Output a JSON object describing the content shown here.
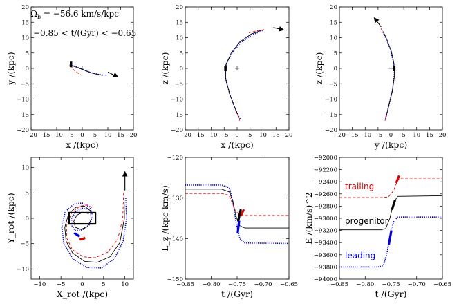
{
  "figure": {
    "annotations": {
      "omega": "Ω",
      "omega_sub": "b",
      "omega_value": " = −56.6 km/s/kpc",
      "time_range": "−0.85 < t/(Gyr) < −0.65"
    }
  },
  "colors": {
    "trailing": "#dd0000",
    "progenitor": "#000000",
    "leading": "#0000dd"
  },
  "chart_data": [
    {
      "type": "line",
      "panel": "xy",
      "xlabel": "x /(kpc)",
      "ylabel": "y /(kpc)",
      "xlim": [
        -20,
        20
      ],
      "ylim": [
        -20,
        20
      ],
      "xticks": [
        -20,
        -15,
        -10,
        -5,
        0,
        5,
        10,
        15,
        20
      ],
      "yticks": [
        -20,
        -15,
        -10,
        -5,
        0,
        5,
        10,
        15,
        20
      ],
      "series": [
        {
          "role": "leading",
          "points": [
            [
              -4.5,
              1.3
            ],
            [
              -2,
              0.4
            ],
            [
              2,
              -1
            ],
            [
              6,
              -1.9
            ],
            [
              9.5,
              -2.3
            ]
          ]
        },
        {
          "role": "progenitor",
          "points": [
            [
              -5,
              1.1
            ],
            [
              -3,
              0.6
            ],
            [
              0,
              -0.3
            ],
            [
              4,
              -1.6
            ],
            [
              8,
              -2.3
            ]
          ]
        },
        {
          "role": "trailing",
          "points": [
            [
              -4.5,
              1.0
            ],
            [
              -3.5,
              -0.4
            ],
            [
              -2,
              -1.3
            ],
            [
              -0.5,
              -2.2
            ]
          ]
        }
      ],
      "progenitor_mark": [
        -4.4,
        1.3
      ],
      "arrow": {
        "from": [
          10,
          -1.2
        ],
        "to": [
          14,
          -2.8
        ]
      },
      "center": [
        0,
        0
      ]
    },
    {
      "type": "line",
      "panel": "xz",
      "xlabel": "x /(kpc)",
      "ylabel": "z /(kpc)",
      "xlim": [
        -20,
        20
      ],
      "ylim": [
        -20,
        20
      ],
      "xticks": [
        -20,
        -15,
        -10,
        -5,
        0,
        5,
        10,
        15,
        20
      ],
      "yticks": [
        -20,
        -15,
        -10,
        -5,
        0,
        5,
        10,
        15,
        20
      ],
      "series": [
        {
          "role": "leading",
          "points": [
            [
              10,
              12.3
            ],
            [
              6,
              11
            ],
            [
              1.5,
              8.5
            ],
            [
              -2,
              5
            ],
            [
              -4.2,
              1.5
            ],
            [
              -4.5,
              -3
            ],
            [
              -3,
              -8
            ],
            [
              -1,
              -12.5
            ],
            [
              0.5,
              -15.5
            ],
            [
              1.2,
              -16.5
            ]
          ]
        },
        {
          "role": "progenitor",
          "points": [
            [
              9.5,
              12.4
            ],
            [
              5.5,
              11.2
            ],
            [
              1,
              8.6
            ],
            [
              -2.3,
              5
            ],
            [
              -4.4,
              1
            ],
            [
              -4.4,
              -3.5
            ],
            [
              -2.8,
              -8.5
            ],
            [
              -0.8,
              -13
            ],
            [
              0.8,
              -16
            ]
          ]
        },
        {
          "role": "trailing",
          "points": [
            [
              10.5,
              12.6
            ],
            [
              7.5,
              12.2
            ],
            [
              4.5,
              11.6
            ]
          ]
        },
        {
          "role": "trailing",
          "points": [
            [
              -0.5,
              -14
            ],
            [
              0.5,
              -15.5
            ],
            [
              1,
              -17
            ]
          ]
        }
      ],
      "progenitor_mark": [
        -4.5,
        0
      ],
      "arrow": {
        "from": [
          14,
          13.3
        ],
        "to": [
          18,
          12.5
        ]
      },
      "center": [
        0,
        0
      ]
    },
    {
      "type": "line",
      "panel": "yz",
      "xlabel": "y /(kpc)",
      "ylabel": "z /(kpc)",
      "xlim": [
        -20,
        20
      ],
      "ylim": [
        -20,
        20
      ],
      "xticks": [
        -20,
        -15,
        -10,
        -5,
        0,
        5,
        10,
        15,
        20
      ],
      "yticks": [
        -20,
        -15,
        -10,
        -5,
        0,
        5,
        10,
        15,
        20
      ],
      "series": [
        {
          "role": "leading",
          "points": [
            [
              -3.5,
              12.5
            ],
            [
              -2,
              10
            ],
            [
              -0.2,
              6
            ],
            [
              1,
              2
            ],
            [
              1.3,
              -2
            ],
            [
              0.6,
              -7
            ],
            [
              -0.5,
              -11
            ],
            [
              -1.5,
              -14.5
            ],
            [
              -2.2,
              -16.5
            ]
          ]
        },
        {
          "role": "progenitor",
          "points": [
            [
              -3,
              12
            ],
            [
              -1.6,
              9.5
            ],
            [
              0.2,
              5.5
            ],
            [
              1.2,
              1.5
            ],
            [
              1.4,
              -2.5
            ],
            [
              0.5,
              -7.5
            ],
            [
              -0.8,
              -12
            ],
            [
              -1.8,
              -15.5
            ]
          ]
        },
        {
          "role": "trailing",
          "points": [
            [
              -3.8,
              13
            ],
            [
              -3,
              11.5
            ]
          ]
        },
        {
          "role": "trailing",
          "points": [
            [
              -1.5,
              -15
            ],
            [
              -2.3,
              -17
            ]
          ]
        }
      ],
      "progenitor_mark": [
        1.3,
        0
      ],
      "arrow": {
        "from": [
          -3.8,
          13.5
        ],
        "to": [
          -6.5,
          16.5
        ]
      },
      "center": [
        0,
        0
      ]
    },
    {
      "type": "line",
      "panel": "rotating-frame",
      "xlabel": "X_rot /(kpc)",
      "ylabel": "Y_rot /(kpc)",
      "xlim": [
        -12,
        12
      ],
      "ylim": [
        -12,
        12
      ],
      "xticks": [
        -10,
        -5,
        0,
        5,
        10
      ],
      "yticks": [
        -10,
        -5,
        0,
        5,
        10
      ],
      "series": [
        {
          "role": "leading",
          "points": [
            [
              10.2,
              4
            ],
            [
              10.4,
              0
            ],
            [
              9.6,
              -4.5
            ],
            [
              7.5,
              -8
            ],
            [
              4.5,
              -9.8
            ],
            [
              1,
              -9.7
            ],
            [
              -2.2,
              -8
            ],
            [
              -4.3,
              -5
            ],
            [
              -4.8,
              -1.8
            ],
            [
              -4,
              1.3
            ],
            [
              -2,
              2.8
            ],
            [
              0,
              3
            ],
            [
              1.8,
              2.2
            ],
            [
              2.4,
              0.5
            ],
            [
              1.8,
              -1.2
            ],
            [
              0,
              -2.3
            ],
            [
              -1.7,
              -2.4
            ],
            [
              -2.4,
              -1.5
            ],
            [
              -2.5,
              0
            ],
            [
              -1.5,
              1.3
            ],
            [
              0,
              2
            ],
            [
              1.6,
              1.7
            ]
          ]
        },
        {
          "role": "progenitor",
          "points": [
            [
              9.8,
              6
            ],
            [
              9.9,
              0
            ],
            [
              8.8,
              -4.8
            ],
            [
              6.5,
              -7.6
            ],
            [
              3.5,
              -8.7
            ],
            [
              0.5,
              -8.5
            ],
            [
              -2.3,
              -6.8
            ],
            [
              -3.8,
              -4.5
            ],
            [
              -4.1,
              -1.8
            ],
            [
              -3.2,
              0.9
            ],
            [
              -1.4,
              2.2
            ],
            [
              0.5,
              2.4
            ],
            [
              1.9,
              1.5
            ],
            [
              2.1,
              -0.2
            ],
            [
              1.3,
              -1.6
            ],
            [
              -0.3,
              -2.2
            ],
            [
              -1.6,
              -1.8
            ],
            [
              -2,
              -0.6
            ],
            [
              -1.3,
              0.6
            ],
            [
              0.2,
              1.2
            ],
            [
              1.5,
              0.9
            ]
          ]
        },
        {
          "role": "trailing",
          "points": [
            [
              9.7,
              5
            ],
            [
              9.5,
              0
            ],
            [
              8.3,
              -4.2
            ],
            [
              6,
              -6.7
            ],
            [
              3,
              -7.8
            ],
            [
              0.2,
              -7.6
            ],
            [
              -2.3,
              -6.2
            ],
            [
              -3.6,
              -4
            ],
            [
              -3.7,
              -1.5
            ],
            [
              -2.6,
              0.9
            ],
            [
              -0.6,
              2.4
            ],
            [
              1.2,
              2.6
            ],
            [
              2.6,
              2
            ]
          ]
        }
      ],
      "thick_marks": [
        {
          "role": "leading",
          "points": [
            [
              -0.6,
              -3.6
            ],
            [
              -1.9,
              -2.9
            ]
          ]
        },
        {
          "role": "trailing",
          "points": [
            [
              0.7,
              -3.9
            ],
            [
              -0.6,
              -4.2
            ]
          ]
        }
      ],
      "bar_box": {
        "x": [
          -3.1,
          3.1
        ],
        "y": [
          -1.1,
          1.1
        ]
      },
      "arrow": {
        "from": [
          10,
          5.5
        ],
        "to": [
          10,
          9.2
        ]
      }
    },
    {
      "type": "line",
      "panel": "angular-momentum",
      "xlabel": "t /(Gyr)",
      "ylabel": "L_z /(kpc km/s)",
      "xlim": [
        -0.85,
        -0.65
      ],
      "ylim": [
        -150,
        -120
      ],
      "xticks": [
        -0.85,
        -0.8,
        -0.75,
        -0.7,
        -0.65
      ],
      "yticks": [
        -150,
        -140,
        -130,
        -120
      ],
      "series": [
        {
          "role": "leading",
          "points": [
            [
              -0.85,
              -126.8
            ],
            [
              -0.78,
              -126.8
            ],
            [
              -0.765,
              -127.5
            ],
            [
              -0.758,
              -131
            ],
            [
              -0.752,
              -136
            ],
            [
              -0.745,
              -140
            ],
            [
              -0.735,
              -141.1
            ],
            [
              -0.65,
              -141.2
            ]
          ]
        },
        {
          "role": "progenitor",
          "points": [
            [
              -0.85,
              -127.8
            ],
            [
              -0.78,
              -127.8
            ],
            [
              -0.765,
              -128.5
            ],
            [
              -0.758,
              -131
            ],
            [
              -0.752,
              -134.5
            ],
            [
              -0.745,
              -136.8
            ],
            [
              -0.735,
              -137.4
            ],
            [
              -0.65,
              -137.4
            ]
          ]
        },
        {
          "role": "trailing",
          "points": [
            [
              -0.85,
              -128.9
            ],
            [
              -0.78,
              -128.9
            ],
            [
              -0.766,
              -129.3
            ],
            [
              -0.76,
              -131
            ],
            [
              -0.753,
              -133.3
            ],
            [
              -0.745,
              -134
            ],
            [
              -0.735,
              -134.3
            ],
            [
              -0.65,
              -134.3
            ]
          ]
        }
      ],
      "thick_marks": [
        {
          "role": "trailing",
          "points": [
            [
              -0.743,
              -134.4
            ],
            [
              -0.737,
              -132.8
            ]
          ]
        },
        {
          "role": "progenitor",
          "points": [
            [
              -0.748,
              -135.8
            ],
            [
              -0.743,
              -132.8
            ]
          ]
        },
        {
          "role": "leading",
          "points": [
            [
              -0.749,
              -138.7
            ],
            [
              -0.746,
              -135.6
            ]
          ]
        }
      ]
    },
    {
      "type": "line",
      "panel": "energy",
      "xlabel": "t /(Gyr)",
      "ylabel": "E /(km/s)^2",
      "xlim": [
        -0.85,
        -0.65
      ],
      "ylim": [
        -94000,
        -92000
      ],
      "xticks": [
        -0.85,
        -0.8,
        -0.75,
        -0.7,
        -0.65
      ],
      "yticks": [
        -94000,
        -93800,
        -93600,
        -93400,
        -93200,
        -93000,
        -92800,
        -92600,
        -92400,
        -92200,
        -92000
      ],
      "series": [
        {
          "role": "trailing",
          "points": [
            [
              -0.85,
              -92660
            ],
            [
              -0.77,
              -92660
            ],
            [
              -0.755,
              -92650
            ],
            [
              -0.745,
              -92550
            ],
            [
              -0.737,
              -92380
            ],
            [
              -0.73,
              -92340
            ],
            [
              -0.65,
              -92340
            ]
          ]
        },
        {
          "role": "progenitor",
          "points": [
            [
              -0.85,
              -93190
            ],
            [
              -0.77,
              -93190
            ],
            [
              -0.76,
              -93170
            ],
            [
              -0.752,
              -93000
            ],
            [
              -0.745,
              -92750
            ],
            [
              -0.737,
              -92640
            ],
            [
              -0.65,
              -92630
            ]
          ]
        },
        {
          "role": "leading",
          "points": [
            [
              -0.85,
              -93800
            ],
            [
              -0.775,
              -93800
            ],
            [
              -0.765,
              -93780
            ],
            [
              -0.758,
              -93600
            ],
            [
              -0.752,
              -93300
            ],
            [
              -0.745,
              -93060
            ],
            [
              -0.737,
              -92980
            ],
            [
              -0.65,
              -92980
            ]
          ]
        }
      ],
      "thick_marks": [
        {
          "role": "trailing",
          "points": [
            [
              -0.74,
              -92420
            ],
            [
              -0.734,
              -92300
            ]
          ]
        },
        {
          "role": "progenitor",
          "points": [
            [
              -0.748,
              -92860
            ],
            [
              -0.742,
              -92700
            ]
          ]
        },
        {
          "role": "leading",
          "points": [
            [
              -0.754,
              -93430
            ],
            [
              -0.749,
              -93200
            ]
          ]
        }
      ],
      "legend": [
        {
          "role": "trailing",
          "label": "trailing"
        },
        {
          "role": "progenitor",
          "label": "progenitor"
        },
        {
          "role": "leading",
          "label": "leading"
        }
      ]
    }
  ]
}
